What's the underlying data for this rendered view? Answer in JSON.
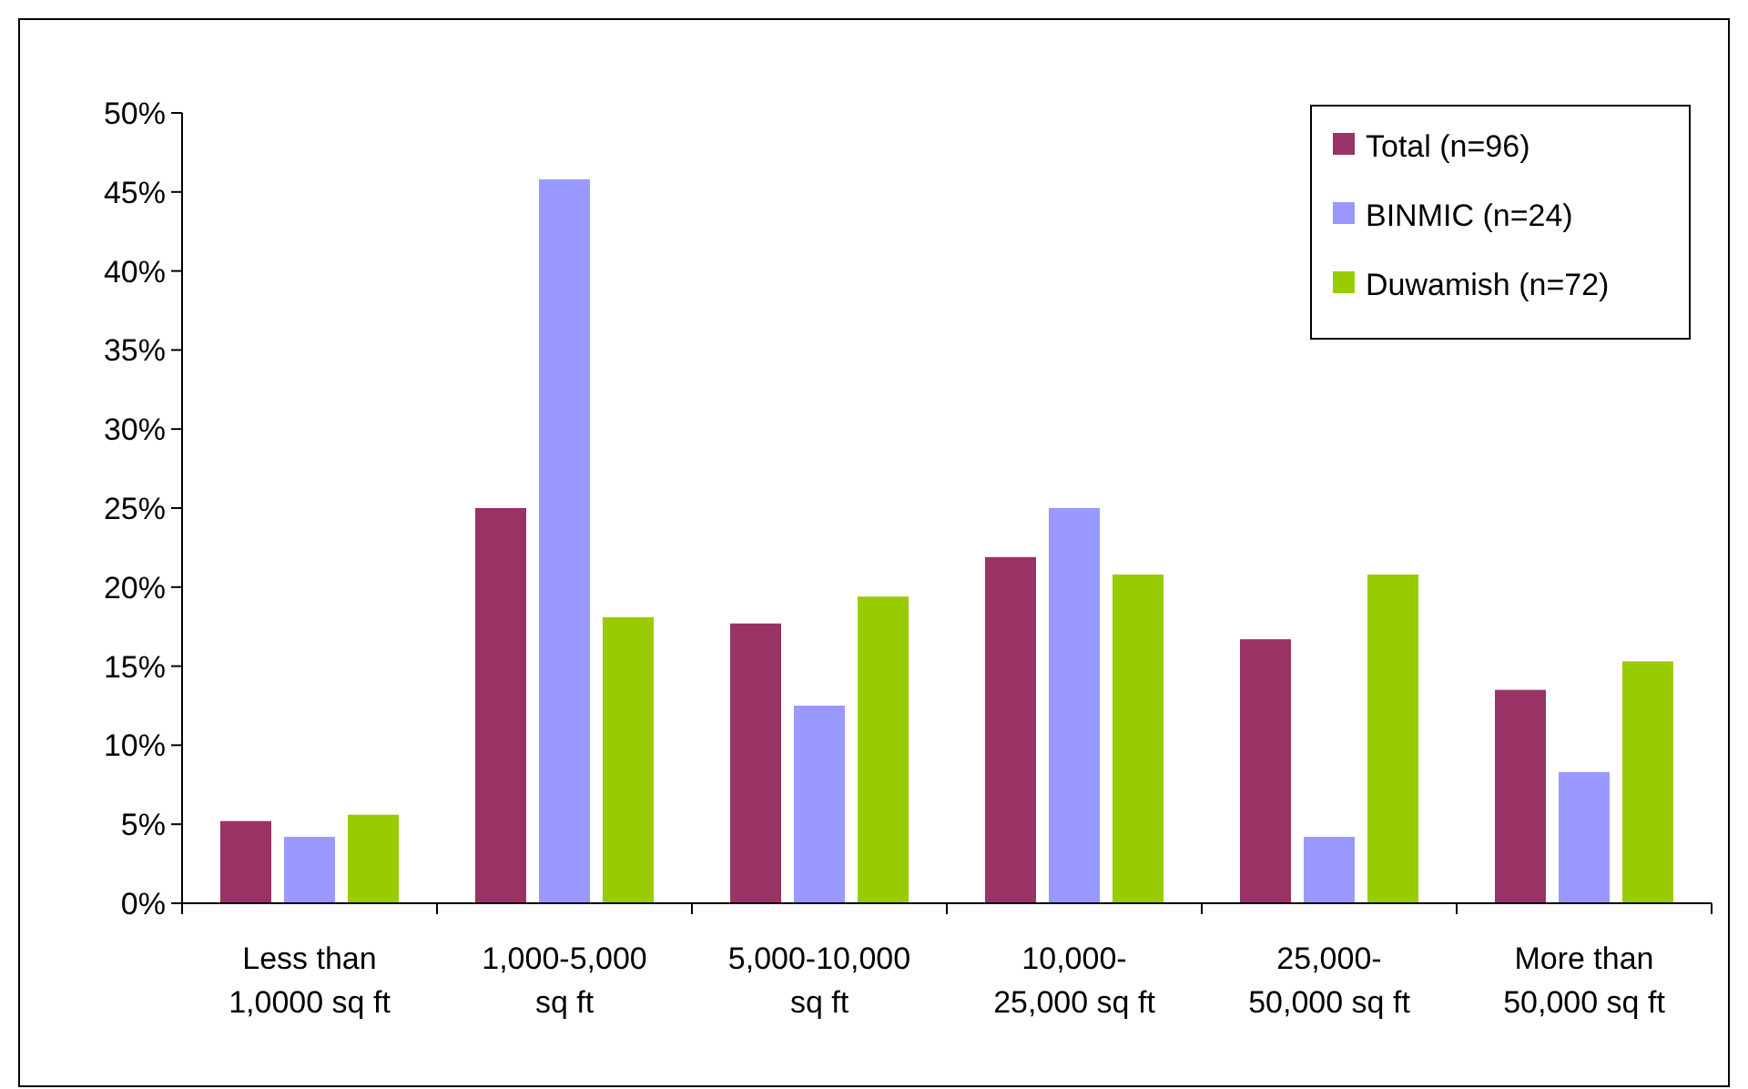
{
  "chart_data": {
    "type": "bar",
    "categories": [
      "Less than 1,0000 sq ft",
      "1,000-5,000 sq ft",
      "5,000-10,000 sq ft",
      "10,000-25,000 sq ft",
      "25,000-50,000 sq ft",
      "More than 50,000 sq ft"
    ],
    "series": [
      {
        "name": "Total (n=96)",
        "color": "#993366",
        "values": [
          5.2,
          25.0,
          17.7,
          21.9,
          16.7,
          13.5
        ]
      },
      {
        "name": "BINMIC (n=24)",
        "color": "#9999ff",
        "values": [
          4.2,
          45.8,
          12.5,
          25.0,
          4.2,
          8.3
        ]
      },
      {
        "name": "Duwamish (n=72)",
        "color": "#99cc00",
        "values": [
          5.6,
          18.1,
          19.4,
          20.8,
          20.8,
          15.3
        ]
      }
    ],
    "ylim": [
      0,
      50
    ],
    "yticks": [
      {
        "value": 0,
        "label": "0%"
      },
      {
        "value": 5,
        "label": "5%"
      },
      {
        "value": 10,
        "label": "10%"
      },
      {
        "value": 15,
        "label": "15%"
      },
      {
        "value": 20,
        "label": "20%"
      },
      {
        "value": 25,
        "label": "25%"
      },
      {
        "value": 30,
        "label": "30%"
      },
      {
        "value": 35,
        "label": "35%"
      },
      {
        "value": 40,
        "label": "40%"
      },
      {
        "value": 45,
        "label": "45%"
      },
      {
        "value": 50,
        "label": "50%"
      }
    ],
    "grid": false,
    "legend": "top right"
  }
}
